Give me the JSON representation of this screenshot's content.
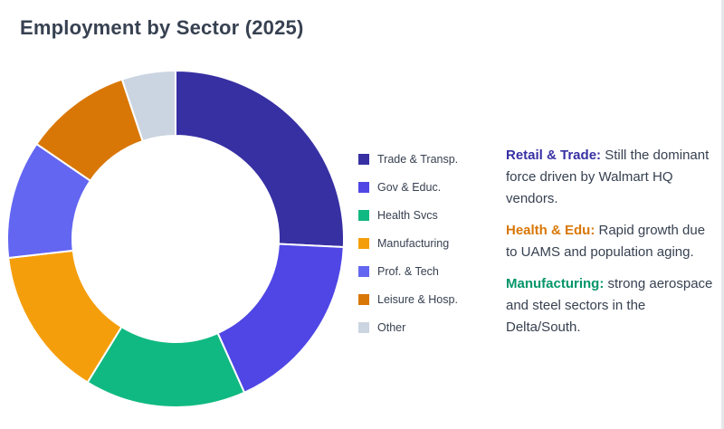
{
  "title": "Employment by Sector (2025)",
  "chart_data": {
    "type": "pie",
    "variant": "donut",
    "title": "Employment by Sector (2025)",
    "legend_position": "right",
    "categories": [
      "Trade & Transp.",
      "Gov & Educ.",
      "Health Svcs",
      "Manufacturing",
      "Prof. & Tech",
      "Leisure & Hosp.",
      "Other"
    ],
    "values": [
      25,
      17,
      15,
      14,
      11,
      10,
      5
    ],
    "colors": [
      "#3730a3",
      "#4f46e5",
      "#10b981",
      "#f59e0b",
      "#6366f1",
      "#d97706",
      "#cbd5e1"
    ]
  },
  "notes": [
    {
      "head": "Retail & Trade:",
      "text": " Still the dominant force driven by Walmart HQ vendors.",
      "color": "#3730a3"
    },
    {
      "head": "Health & Edu:",
      "text": " Rapid growth due to UAMS and population aging.",
      "color": "#d97706"
    },
    {
      "head": "Manufacturing:",
      "text": " strong aerospace and steel sectors in the Delta/South.",
      "color": "#059669"
    }
  ]
}
